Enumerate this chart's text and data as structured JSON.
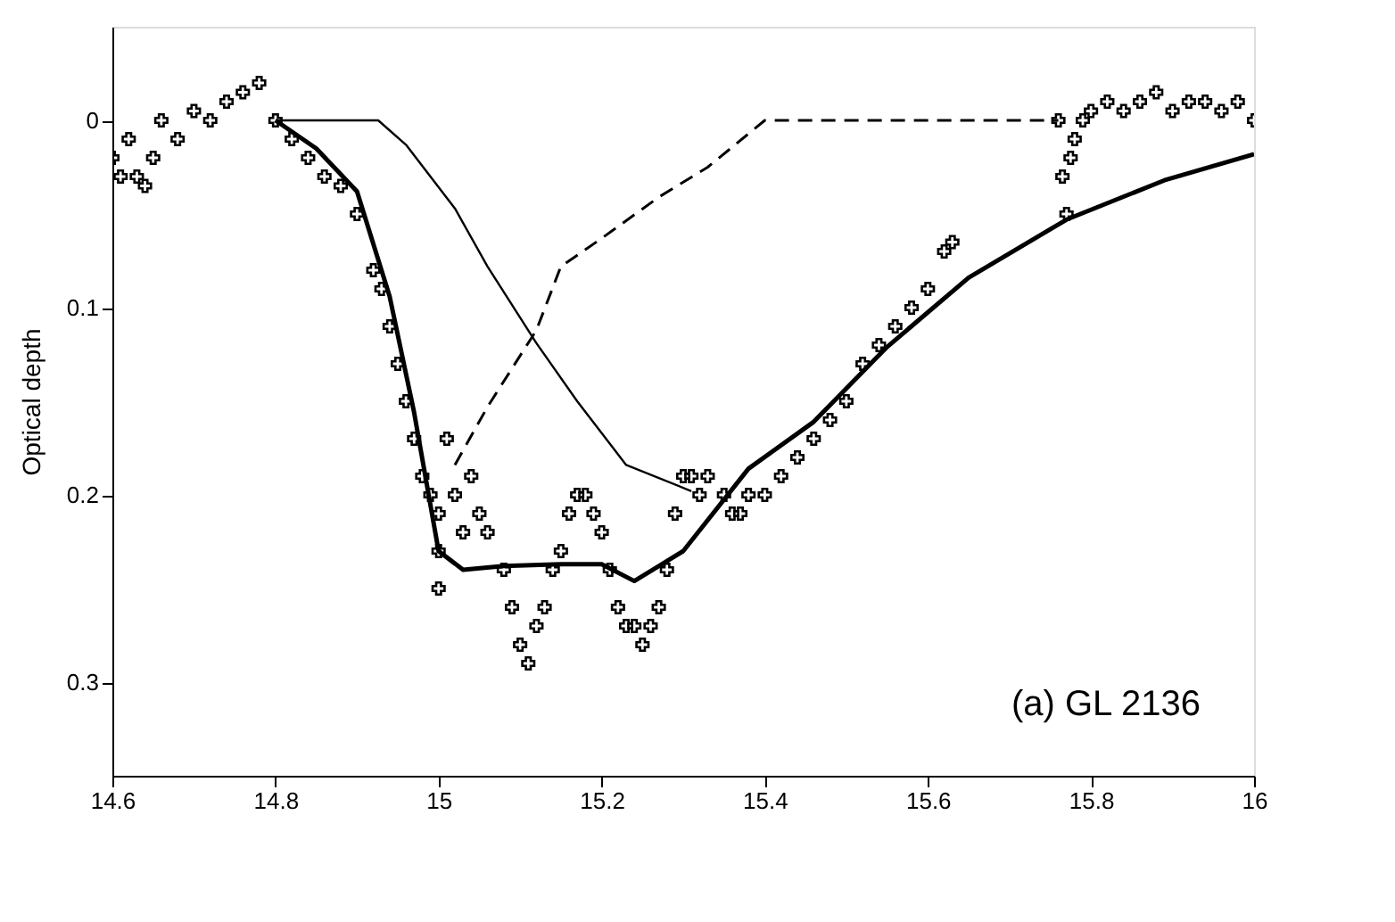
{
  "chart_data": {
    "type": "line",
    "ylabel": "Optical depth",
    "xlim": [
      14.6,
      16
    ],
    "xticks": [
      14.6,
      14.8,
      15,
      15.2,
      15.4,
      15.6,
      15.8,
      16
    ],
    "ylim": [
      0.35,
      -0.05
    ],
    "yticks": [
      0,
      0.1,
      0.2,
      0.3
    ],
    "grid": false,
    "annotations": [
      "(a) GL 2136"
    ],
    "series": [
      {
        "type": "scatter",
        "marker": "cross",
        "color": "#000000",
        "x": [
          14.6,
          14.61,
          14.62,
          14.63,
          14.64,
          14.65,
          14.66,
          14.68,
          14.7,
          14.72,
          14.74,
          14.76,
          14.78,
          14.8,
          14.82,
          14.84,
          14.86,
          14.88,
          14.9,
          14.92,
          14.93,
          14.94,
          14.95,
          14.96,
          14.97,
          14.98,
          14.99,
          15.0,
          15.0,
          15.0,
          15.01,
          15.02,
          15.03,
          15.04,
          15.05,
          15.06,
          15.08,
          15.09,
          15.1,
          15.11,
          15.12,
          15.13,
          15.14,
          15.15,
          15.16,
          15.17,
          15.18,
          15.19,
          15.2,
          15.21,
          15.22,
          15.23,
          15.24,
          15.25,
          15.26,
          15.27,
          15.28,
          15.29,
          15.3,
          15.31,
          15.32,
          15.33,
          15.35,
          15.36,
          15.37,
          15.38,
          15.4,
          15.42,
          15.44,
          15.46,
          15.48,
          15.5,
          15.52,
          15.54,
          15.56,
          15.58,
          15.6,
          15.62,
          15.63,
          15.76,
          15.765,
          15.77,
          15.775,
          15.78,
          15.79,
          15.8,
          15.82,
          15.84,
          15.86,
          15.88,
          15.9,
          15.92,
          15.94,
          15.96,
          15.98,
          16.0
        ],
        "values": [
          0.02,
          0.03,
          0.01,
          0.03,
          0.035,
          0.02,
          0.0,
          0.01,
          -0.005,
          0.0,
          -0.01,
          -0.015,
          -0.02,
          0.0,
          0.01,
          0.02,
          0.03,
          0.035,
          0.05,
          0.08,
          0.09,
          0.11,
          0.13,
          0.15,
          0.17,
          0.19,
          0.2,
          0.21,
          0.23,
          0.25,
          0.17,
          0.2,
          0.22,
          0.19,
          0.21,
          0.22,
          0.24,
          0.26,
          0.28,
          0.29,
          0.27,
          0.26,
          0.24,
          0.23,
          0.21,
          0.2,
          0.2,
          0.21,
          0.22,
          0.24,
          0.26,
          0.27,
          0.27,
          0.28,
          0.27,
          0.26,
          0.24,
          0.21,
          0.19,
          0.19,
          0.2,
          0.19,
          0.2,
          0.21,
          0.21,
          0.2,
          0.2,
          0.19,
          0.18,
          0.17,
          0.16,
          0.15,
          0.13,
          0.12,
          0.11,
          0.1,
          0.09,
          0.07,
          0.065,
          0.0,
          0.03,
          0.05,
          0.02,
          0.01,
          0.0,
          -0.005,
          -0.01,
          -0.005,
          -0.01,
          -0.015,
          -0.005,
          -0.01,
          -0.01,
          -0.005,
          -0.01,
          0.0
        ]
      },
      {
        "line_style": "solid",
        "color": "#000000",
        "x": [
          14.8,
          14.85,
          14.9,
          14.94,
          14.97,
          15.0,
          15.03,
          15.08,
          15.15,
          15.2,
          15.24,
          15.27,
          15.3,
          15.38,
          15.46,
          15.55,
          15.65,
          15.77,
          15.89,
          16.0
        ],
        "values": [
          0.0,
          0.015,
          0.038,
          0.094,
          0.156,
          0.23,
          0.24,
          0.238,
          0.237,
          0.237,
          0.246,
          0.238,
          0.23,
          0.186,
          0.161,
          0.121,
          0.084,
          0.053,
          0.032,
          0.018
        ]
      },
      {
        "line_style": "solid",
        "color": "#000000",
        "x": [
          14.8,
          14.926,
          14.96,
          15.02,
          15.06,
          15.12,
          15.17,
          15.23,
          15.31
        ],
        "values": [
          0.0,
          0.0,
          0.013,
          0.047,
          0.078,
          0.119,
          0.15,
          0.184,
          0.198
        ]
      },
      {
        "line_style": "dashed",
        "color": "#000000",
        "x": [
          15.02,
          15.06,
          15.12,
          15.15,
          15.2,
          15.27,
          15.33,
          15.4,
          15.76
        ],
        "values": [
          0.184,
          0.153,
          0.112,
          0.078,
          0.063,
          0.041,
          0.025,
          0.0,
          0.0
        ]
      }
    ]
  }
}
